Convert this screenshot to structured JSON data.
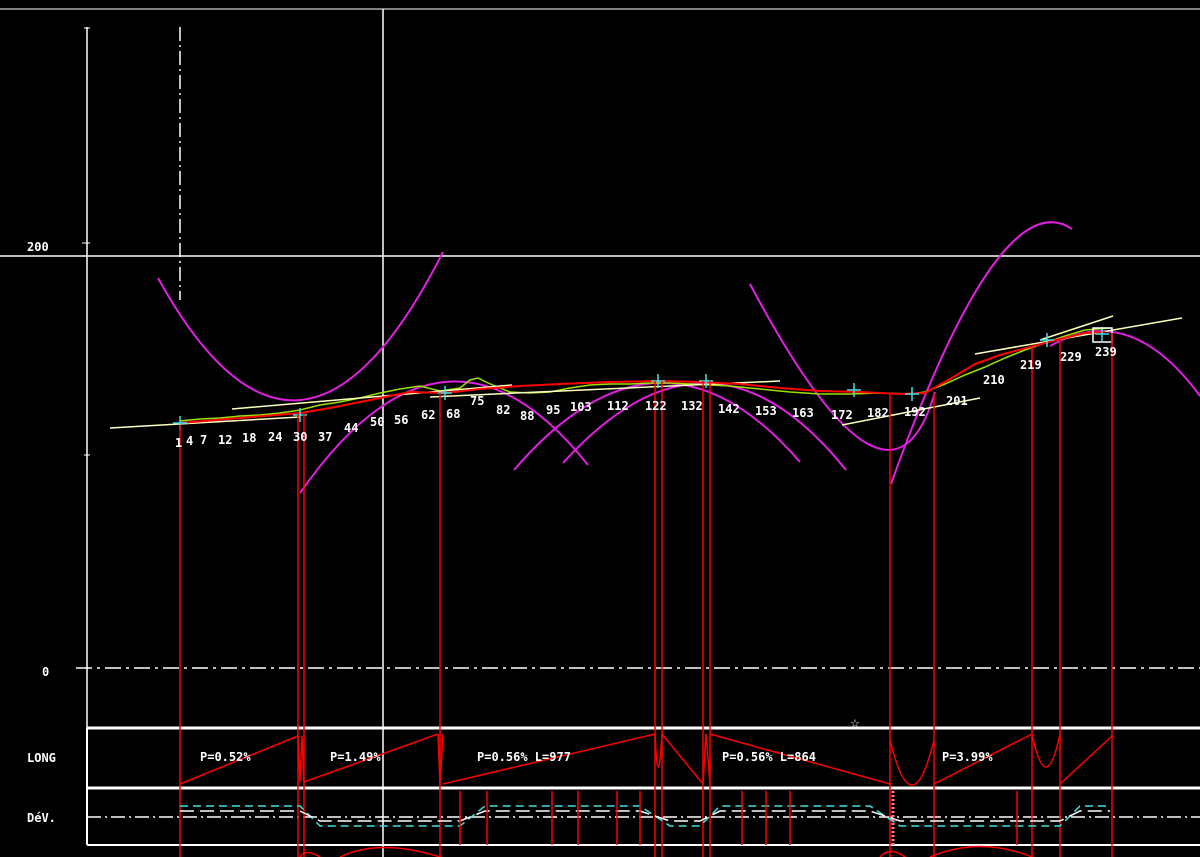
{
  "y_axis": {
    "labels": [
      {
        "text": "200",
        "value": 200
      },
      {
        "text": "0",
        "value": 0
      }
    ]
  },
  "stations": [
    "1",
    "4",
    "7",
    "12",
    "18",
    "24",
    "30",
    "37",
    "44",
    "50",
    "56",
    "62",
    "68",
    "75",
    "82",
    "88",
    "95",
    "103",
    "112",
    "122",
    "132",
    "142",
    "153",
    "163",
    "172",
    "182",
    "192",
    "201",
    "210",
    "219",
    "229",
    "239"
  ],
  "bands": [
    {
      "label": "LONG",
      "slopes": [
        "P=0.52%",
        "P=1.49%",
        "P=0.56% L=977",
        "P=0.56% L=864",
        "P=3.99%"
      ]
    },
    {
      "label": "DéV."
    }
  ],
  "colors": {
    "background": "#000000",
    "grid": "#ffffff",
    "profile": "#ff0000",
    "curves": "#e020e0",
    "terrain": "#9be000",
    "marks": "#40e0e0",
    "tangent": "#ffffc0"
  }
}
